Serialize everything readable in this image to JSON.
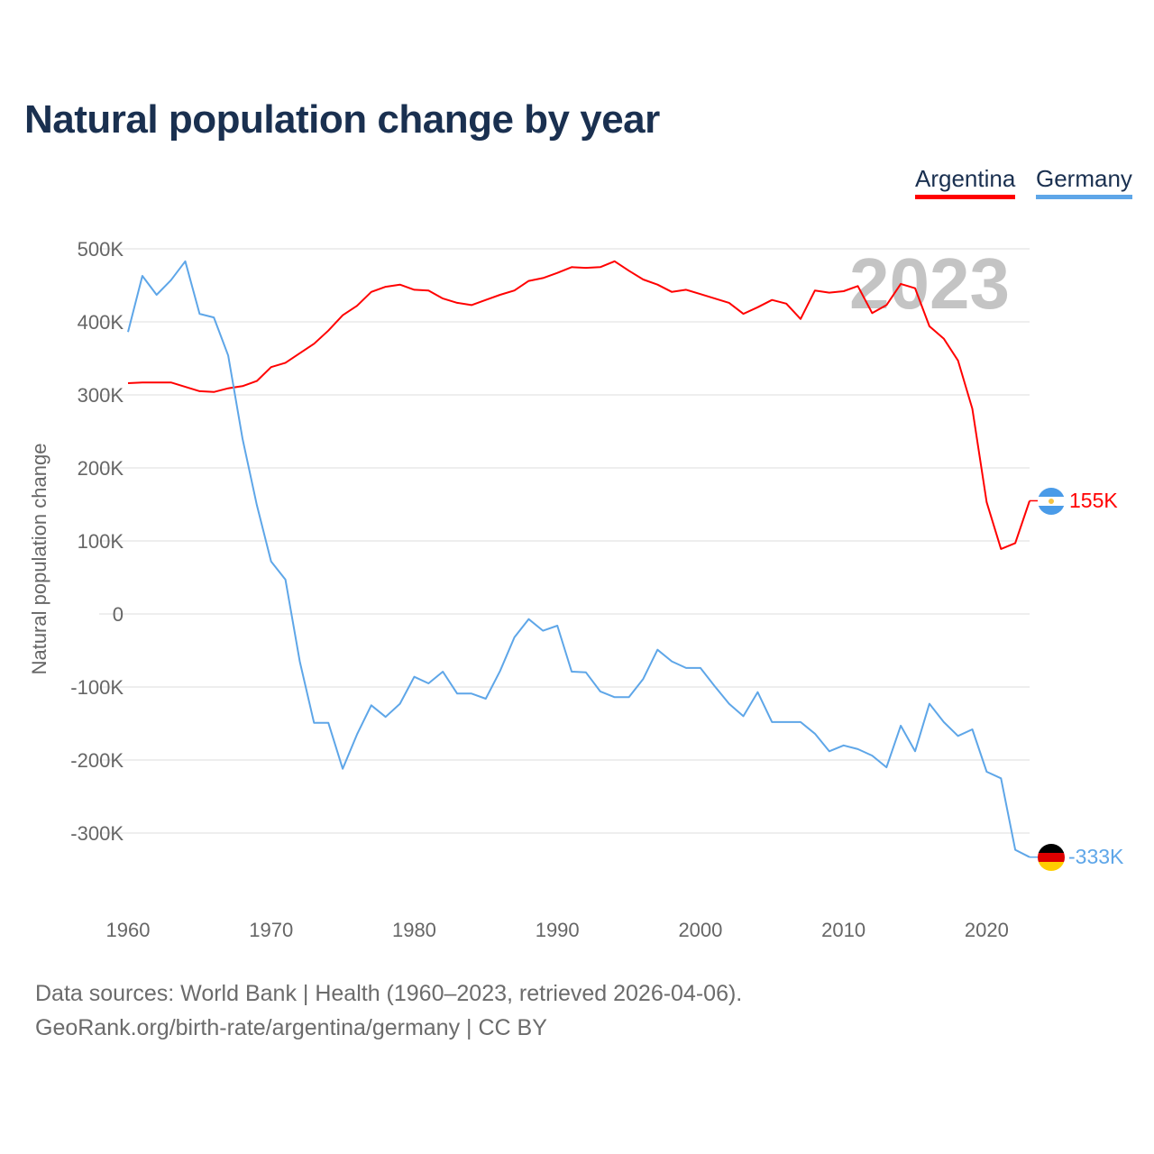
{
  "title": "Natural population change by year",
  "legend": [
    {
      "label": "Argentina",
      "color": "#ff0000"
    },
    {
      "label": "Germany",
      "color": "#5ea6e8"
    }
  ],
  "watermark_year": "2023",
  "end_labels": {
    "argentina": "155K",
    "germany": "-333K"
  },
  "footer": {
    "line1": "Data sources: World Bank | Health (1960–2023, retrieved 2026-04-06).",
    "line2": "GeoRank.org/birth-rate/argentina/germany | CC BY"
  },
  "chart_data": {
    "type": "line",
    "title": "Natural population change by year",
    "xlabel": "",
    "ylabel": "Natural population change",
    "xlim": [
      1960,
      2023
    ],
    "ylim": [
      -400,
      500
    ],
    "y_unit": "thousands",
    "grid": true,
    "legend_position": "top-right",
    "x_ticks": [
      1960,
      1970,
      1980,
      1990,
      2000,
      2010,
      2020
    ],
    "x_tick_labels": [
      "1960",
      "1970",
      "1980",
      "1990",
      "2000",
      "2010",
      "2020"
    ],
    "y_ticks": [
      500,
      400,
      300,
      200,
      100,
      0,
      -100,
      -200,
      -300
    ],
    "y_tick_labels": [
      "500K",
      "400K",
      "300K",
      "200K",
      "100K",
      "0",
      "-100K",
      "-200K",
      "-300K"
    ],
    "x": [
      1960,
      1961,
      1962,
      1963,
      1964,
      1965,
      1966,
      1967,
      1968,
      1969,
      1970,
      1971,
      1972,
      1973,
      1974,
      1975,
      1976,
      1977,
      1978,
      1979,
      1980,
      1981,
      1982,
      1983,
      1984,
      1985,
      1986,
      1987,
      1988,
      1989,
      1990,
      1991,
      1992,
      1993,
      1994,
      1995,
      1996,
      1997,
      1998,
      1999,
      2000,
      2001,
      2002,
      2003,
      2004,
      2005,
      2006,
      2007,
      2008,
      2009,
      2010,
      2011,
      2012,
      2013,
      2014,
      2015,
      2016,
      2017,
      2018,
      2019,
      2020,
      2021,
      2022,
      2023
    ],
    "series": [
      {
        "name": "Argentina",
        "color": "#ff0000",
        "values": [
          316,
          317,
          317,
          317,
          311,
          305,
          304,
          309,
          312,
          319,
          338,
          344,
          357,
          370,
          388,
          409,
          422,
          441,
          448,
          451,
          444,
          443,
          432,
          426,
          423,
          430,
          437,
          443,
          456,
          460,
          467,
          475,
          474,
          475,
          483,
          470,
          458,
          451,
          441,
          444,
          438,
          432,
          426,
          411,
          420,
          430,
          425,
          404,
          443,
          440,
          442,
          449,
          412,
          423,
          452,
          446,
          394,
          377,
          347,
          281,
          153,
          89,
          97,
          155
        ]
      },
      {
        "name": "Germany",
        "color": "#5ea6e8",
        "values": [
          386,
          463,
          437,
          457,
          483,
          411,
          406,
          354,
          240,
          149,
          72,
          47,
          -65,
          -149,
          -149,
          -212,
          -165,
          -125,
          -141,
          -123,
          -86,
          -95,
          -79,
          -109,
          -109,
          -116,
          -78,
          -32,
          -7,
          -23,
          -16,
          -79,
          -80,
          -106,
          -114,
          -114,
          -89,
          -49,
          -65,
          -74,
          -74,
          -99,
          -123,
          -140,
          -107,
          -148,
          -148,
          -148,
          -164,
          -188,
          -180,
          -185,
          -194,
          -210,
          -153,
          -188,
          -123,
          -148,
          -167,
          -158,
          -216,
          -225,
          -323,
          -333
        ]
      }
    ]
  }
}
